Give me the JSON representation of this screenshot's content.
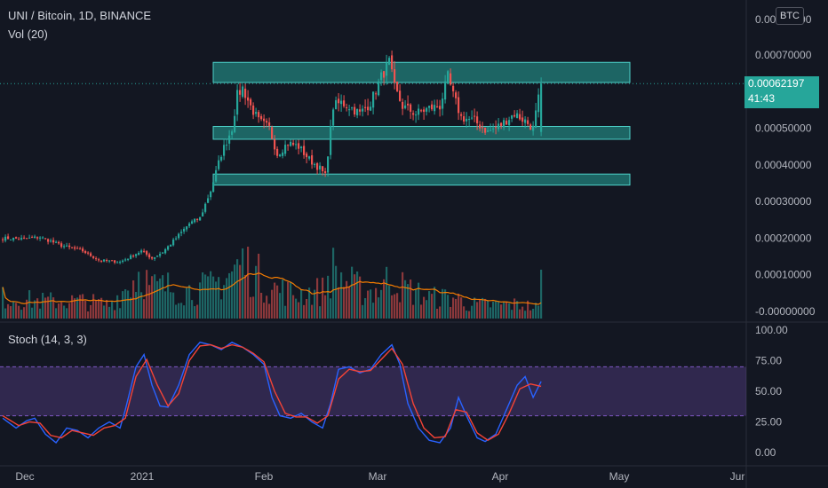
{
  "header": {
    "title": "UNI / Bitcoin, 1D, BINANCE",
    "volume_label": "Vol (20)",
    "stoch_label": "Stoch (14, 3, 3)",
    "currency": "BTC"
  },
  "last_price": {
    "value": "0.00062197",
    "countdown": "41:43"
  },
  "colors": {
    "background": "#131722",
    "up": "#26a69a",
    "down": "#ef5350",
    "zone": "#26a69a",
    "volume_ma": "#f57c00",
    "stoch_k": "#2962ff",
    "stoch_d": "#f44336",
    "stoch_band": "#7e57c2"
  },
  "chart_data": [
    {
      "type": "candlestick",
      "title": "UNI / Bitcoin, 1D, BINANCE",
      "x_ticks": [
        "Dec",
        "2021",
        "Feb",
        "Mar",
        "Apr",
        "May",
        "Jur"
      ],
      "y_ticks": [
        "0.00070000",
        "0.00060000",
        "0.00050000",
        "0.00040000",
        "0.00030000",
        "0.00020000",
        "0.00010000",
        "-0.00000000"
      ],
      "y_top_partial_label": "0.00080000",
      "ylim": [
        -1e-05,
        0.00082
      ],
      "last_price": 0.00062197,
      "zones": [
        {
          "low": 0.000625,
          "high": 0.00068
        },
        {
          "low": 0.00047,
          "high": 0.000505
        },
        {
          "low": 0.000345,
          "high": 0.000375
        }
      ],
      "close_anchors": [
        [
          0,
          0.0002
        ],
        [
          8,
          0.000198
        ],
        [
          14,
          0.000203
        ],
        [
          22,
          0.00018
        ],
        [
          30,
          0.000165
        ],
        [
          36,
          0.00014
        ],
        [
          44,
          0.000135
        ],
        [
          48,
          0.00015
        ],
        [
          52,
          0.000165
        ],
        [
          56,
          0.000145
        ],
        [
          60,
          0.000162
        ],
        [
          65,
          0.0002
        ],
        [
          70,
          0.00024
        ],
        [
          74,
          0.000255
        ],
        [
          78,
          0.00033
        ],
        [
          82,
          0.00043
        ],
        [
          86,
          0.0005
        ],
        [
          88,
          0.00059
        ],
        [
          90,
          0.00061
        ],
        [
          93,
          0.00056
        ],
        [
          96,
          0.00052
        ],
        [
          100,
          0.0005
        ],
        [
          103,
          0.00043
        ],
        [
          107,
          0.00046
        ],
        [
          111,
          0.00045
        ],
        [
          115,
          0.000415
        ],
        [
          119,
          0.00039
        ],
        [
          121,
          0.00037
        ],
        [
          124,
          0.00056
        ],
        [
          127,
          0.00057
        ],
        [
          130,
          0.00056
        ],
        [
          134,
          0.00054
        ],
        [
          138,
          0.00057
        ],
        [
          142,
          0.00064
        ],
        [
          145,
          0.00068
        ],
        [
          147,
          0.00061
        ],
        [
          150,
          0.00056
        ],
        [
          155,
          0.00054
        ],
        [
          160,
          0.000555
        ],
        [
          164,
          0.00056
        ],
        [
          167,
          0.00064
        ],
        [
          169,
          0.00059
        ],
        [
          172,
          0.00053
        ],
        [
          177,
          0.00052
        ],
        [
          182,
          0.00049
        ],
        [
          187,
          0.00051
        ],
        [
          192,
          0.00054
        ],
        [
          196,
          0.00052
        ],
        [
          199,
          0.0005
        ],
        [
          202,
          0.00062
        ]
      ]
    },
    {
      "type": "bar",
      "name": "Vol (20)",
      "ma_period": 20,
      "volume_anchors": [
        [
          0,
          0.3
        ],
        [
          14,
          0.25
        ],
        [
          30,
          0.25
        ],
        [
          40,
          0.2
        ],
        [
          48,
          0.5
        ],
        [
          52,
          0.7
        ],
        [
          55,
          0.45
        ],
        [
          62,
          0.45
        ],
        [
          70,
          0.4
        ],
        [
          78,
          0.45
        ],
        [
          84,
          0.6
        ],
        [
          90,
          0.8
        ],
        [
          96,
          0.6
        ],
        [
          100,
          0.45
        ],
        [
          110,
          0.35
        ],
        [
          120,
          0.4
        ],
        [
          124,
          0.7
        ],
        [
          128,
          0.55
        ],
        [
          135,
          0.4
        ],
        [
          140,
          0.4
        ],
        [
          146,
          0.6
        ],
        [
          150,
          0.45
        ],
        [
          160,
          0.3
        ],
        [
          170,
          0.3
        ],
        [
          175,
          0.2
        ],
        [
          185,
          0.2
        ],
        [
          195,
          0.2
        ],
        [
          201,
          0.15
        ],
        [
          202,
          0.55
        ]
      ]
    },
    {
      "type": "line",
      "name": "Stoch (14, 3, 3)",
      "y_ticks": [
        "100.00",
        "75.00",
        "50.00",
        "25.00",
        "0.00"
      ],
      "ylim": [
        -5,
        100
      ],
      "band": [
        30,
        70
      ],
      "k_anchors": [
        [
          0,
          28
        ],
        [
          5,
          20
        ],
        [
          9,
          26
        ],
        [
          12,
          28
        ],
        [
          16,
          15
        ],
        [
          20,
          8
        ],
        [
          24,
          20
        ],
        [
          28,
          18
        ],
        [
          32,
          12
        ],
        [
          36,
          20
        ],
        [
          40,
          25
        ],
        [
          44,
          20
        ],
        [
          46,
          35
        ],
        [
          50,
          70
        ],
        [
          53,
          80
        ],
        [
          56,
          55
        ],
        [
          59,
          38
        ],
        [
          62,
          37
        ],
        [
          66,
          55
        ],
        [
          70,
          80
        ],
        [
          74,
          90
        ],
        [
          78,
          88
        ],
        [
          82,
          84
        ],
        [
          86,
          90
        ],
        [
          90,
          86
        ],
        [
          94,
          80
        ],
        [
          98,
          72
        ],
        [
          101,
          45
        ],
        [
          104,
          30
        ],
        [
          108,
          28
        ],
        [
          112,
          32
        ],
        [
          116,
          25
        ],
        [
          120,
          20
        ],
        [
          123,
          40
        ],
        [
          126,
          68
        ],
        [
          130,
          70
        ],
        [
          134,
          65
        ],
        [
          138,
          68
        ],
        [
          142,
          80
        ],
        [
          146,
          88
        ],
        [
          149,
          72
        ],
        [
          152,
          40
        ],
        [
          156,
          20
        ],
        [
          160,
          10
        ],
        [
          164,
          8
        ],
        [
          168,
          20
        ],
        [
          171,
          45
        ],
        [
          174,
          30
        ],
        [
          178,
          12
        ],
        [
          181,
          9
        ],
        [
          185,
          15
        ],
        [
          189,
          35
        ],
        [
          193,
          55
        ],
        [
          196,
          62
        ],
        [
          199,
          45
        ],
        [
          202,
          58
        ]
      ],
      "d_anchors": [
        [
          0,
          30
        ],
        [
          6,
          22
        ],
        [
          10,
          25
        ],
        [
          14,
          24
        ],
        [
          18,
          14
        ],
        [
          22,
          12
        ],
        [
          26,
          18
        ],
        [
          30,
          16
        ],
        [
          34,
          14
        ],
        [
          38,
          20
        ],
        [
          42,
          22
        ],
        [
          46,
          28
        ],
        [
          50,
          62
        ],
        [
          54,
          76
        ],
        [
          58,
          55
        ],
        [
          62,
          38
        ],
        [
          66,
          48
        ],
        [
          70,
          75
        ],
        [
          74,
          87
        ],
        [
          78,
          88
        ],
        [
          82,
          85
        ],
        [
          86,
          88
        ],
        [
          90,
          86
        ],
        [
          94,
          81
        ],
        [
          98,
          74
        ],
        [
          102,
          50
        ],
        [
          106,
          32
        ],
        [
          110,
          29
        ],
        [
          114,
          29
        ],
        [
          118,
          24
        ],
        [
          122,
          30
        ],
        [
          126,
          60
        ],
        [
          130,
          68
        ],
        [
          134,
          66
        ],
        [
          138,
          67
        ],
        [
          142,
          76
        ],
        [
          146,
          85
        ],
        [
          150,
          72
        ],
        [
          154,
          40
        ],
        [
          158,
          20
        ],
        [
          162,
          12
        ],
        [
          166,
          13
        ],
        [
          170,
          35
        ],
        [
          174,
          33
        ],
        [
          178,
          16
        ],
        [
          182,
          10
        ],
        [
          186,
          15
        ],
        [
          190,
          32
        ],
        [
          194,
          52
        ],
        [
          198,
          56
        ],
        [
          202,
          54
        ]
      ]
    }
  ]
}
